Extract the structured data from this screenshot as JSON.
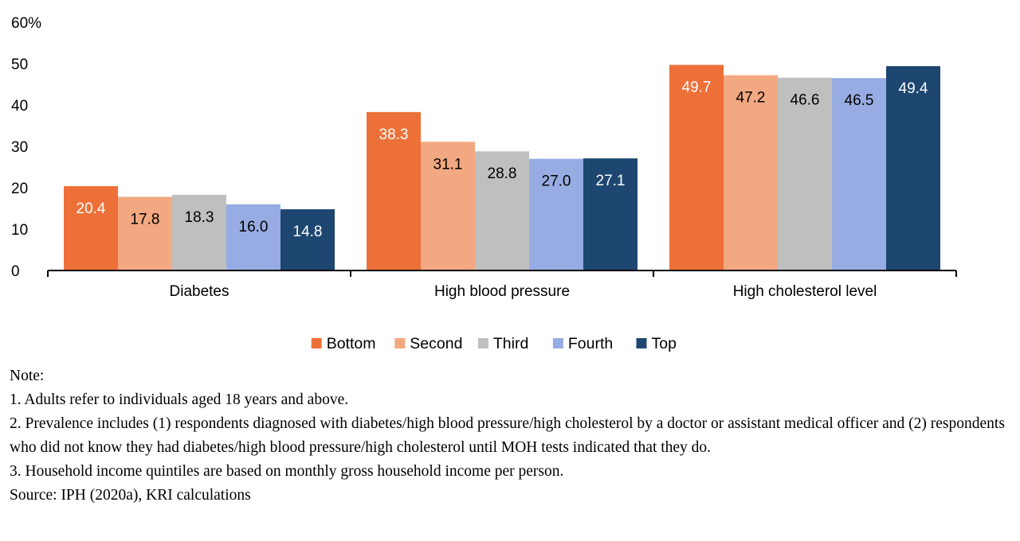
{
  "chart_data": {
    "type": "bar",
    "categories": [
      "Diabetes",
      "High blood pressure",
      "High cholesterol level"
    ],
    "series": [
      {
        "name": "Bottom",
        "color": "#ED7038",
        "label_color": "#ffffff",
        "values": [
          20.4,
          38.3,
          49.7
        ],
        "labels": [
          "20.4",
          "38.3",
          "49.7"
        ]
      },
      {
        "name": "Second",
        "color": "#F2A880",
        "label_color": "#000000",
        "values": [
          17.8,
          31.1,
          47.2
        ],
        "labels": [
          "17.8",
          "31.1",
          "47.2"
        ]
      },
      {
        "name": "Third",
        "color": "#BFBFBF",
        "label_color": "#000000",
        "values": [
          18.3,
          28.8,
          46.6
        ],
        "labels": [
          "18.3",
          "28.8",
          "46.6"
        ]
      },
      {
        "name": "Fourth",
        "color": "#97ACE2",
        "label_color": "#000000",
        "values": [
          16.0,
          27.0,
          46.5
        ],
        "labels": [
          "16.0",
          "27.0",
          "46.5"
        ]
      },
      {
        "name": "Top",
        "color": "#1D4771",
        "label_color": "#ffffff",
        "values": [
          14.8,
          27.1,
          49.4
        ],
        "labels": [
          "14.8",
          "27.1",
          "49.4"
        ]
      }
    ],
    "yticks": [
      {
        "value": 0,
        "label": "0"
      },
      {
        "value": 10,
        "label": "10"
      },
      {
        "value": 20,
        "label": "20"
      },
      {
        "value": 30,
        "label": "30"
      },
      {
        "value": 40,
        "label": "40"
      },
      {
        "value": 50,
        "label": "50"
      },
      {
        "value": 60,
        "label": "60%"
      }
    ],
    "ylim": [
      0,
      60
    ],
    "grid": false,
    "legend_position": "bottom"
  },
  "notes": {
    "heading": "Note:",
    "lines": [
      "1. Adults refer to individuals aged 18 years and above.",
      "2. Prevalence includes (1) respondents diagnosed with diabetes/high blood pressure/high cholesterol by a doctor or assistant medical officer and (2) respondents who did not know they had diabetes/high blood pressure/high cholesterol until MOH tests indicated that they do.",
      "3. Household income quintiles are based on monthly gross household income per person."
    ],
    "source": "Source: IPH (2020a), KRI calculations"
  }
}
